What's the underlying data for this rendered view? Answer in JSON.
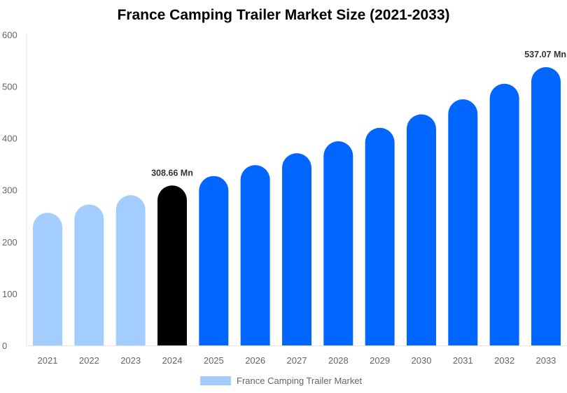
{
  "chart_data": {
    "type": "bar",
    "title": "France Camping Trailer Market Size (2021-2033)",
    "xlabel": "",
    "ylabel": "",
    "categories": [
      "2021",
      "2022",
      "2023",
      "2024",
      "2025",
      "2026",
      "2027",
      "2028",
      "2029",
      "2030",
      "2031",
      "2032",
      "2033"
    ],
    "series": [
      {
        "name": "France Camping Trailer Market",
        "values": [
          256,
          272,
          290,
          308.66,
          327,
          348,
          371,
          394,
          420,
          446,
          475,
          505,
          537.07
        ]
      }
    ],
    "bar_colors": [
      "#a3cdfd",
      "#a3cdfd",
      "#a3cdfd",
      "#000000",
      "#0066ff",
      "#0066ff",
      "#0066ff",
      "#0066ff",
      "#0066ff",
      "#0066ff",
      "#0066ff",
      "#0066ff",
      "#0066ff"
    ],
    "legend_color": "#a3cdfd",
    "data_labels": [
      {
        "category": "2024",
        "text": "308.66 Mn"
      },
      {
        "category": "2033",
        "text": "537.07 Mn"
      }
    ],
    "ylim": [
      0,
      600
    ],
    "yticks": [
      "0",
      "100",
      "200",
      "300",
      "400",
      "500",
      "600"
    ],
    "grid": false,
    "legend_position": "bottom"
  }
}
